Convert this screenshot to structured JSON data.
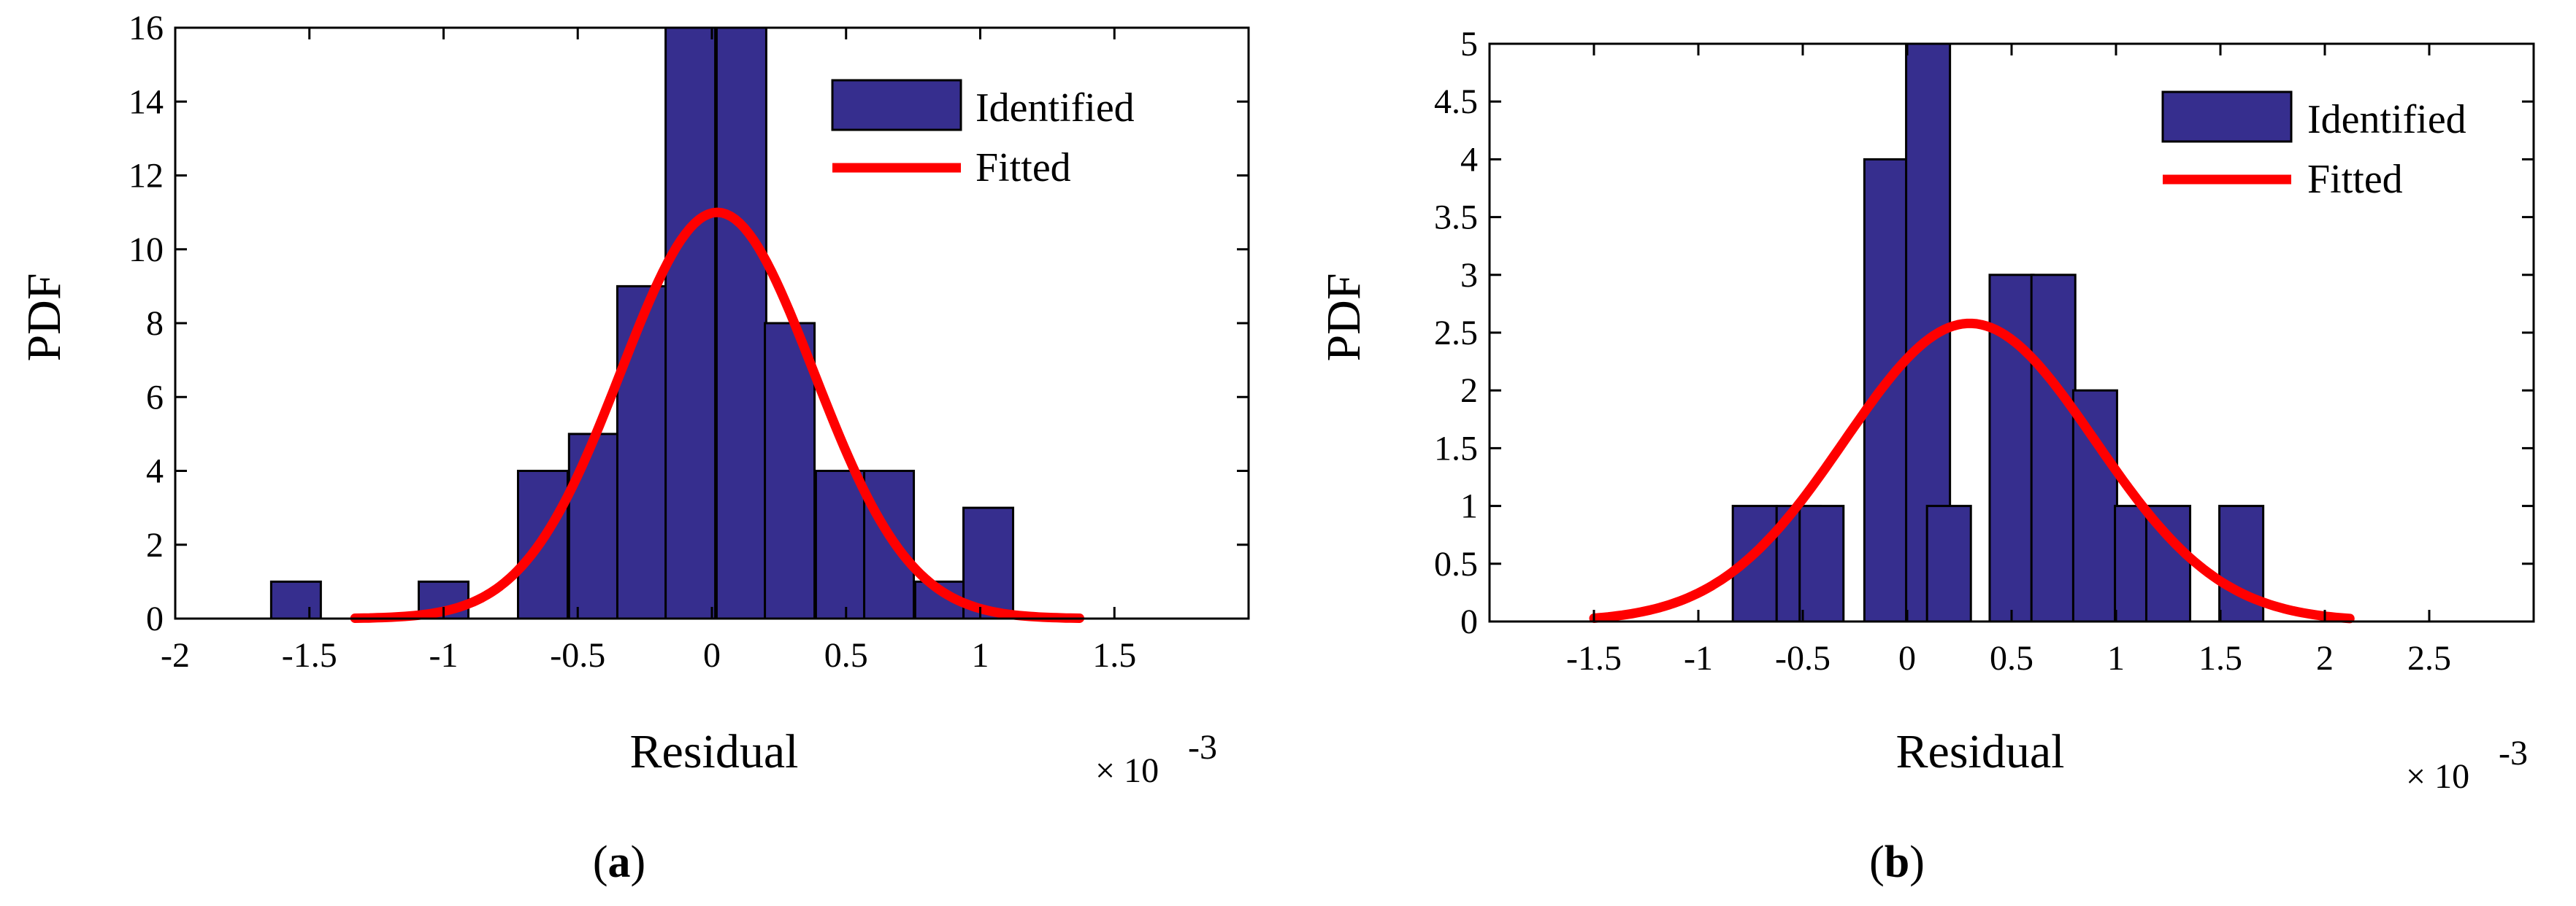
{
  "colors": {
    "bar": "#362E8E",
    "fit": "#FF0000",
    "edge": "#000000"
  },
  "chart_data": [
    {
      "type": "bar",
      "panel": "(a)",
      "caption": {
        "open": "(",
        "letter": "a",
        "close": ")"
      },
      "xlabel": "Residual",
      "ylabel": "PDF",
      "exponent": {
        "base": "× 10",
        "power": "-3"
      },
      "xlim": [
        -2.0,
        2.0
      ],
      "ylim": [
        0,
        16
      ],
      "xticks": [
        -2,
        -1.5,
        -1,
        -0.5,
        0,
        0.5,
        1,
        1.5
      ],
      "xtick_labels": [
        "-2",
        "-1.5",
        "-1",
        "-0.5",
        "0",
        "0.5",
        "1",
        "1.5"
      ],
      "yticks": [
        0,
        2,
        4,
        6,
        8,
        10,
        12,
        14,
        16
      ],
      "ytick_labels": [
        "0",
        "2",
        "4",
        "6",
        "8",
        "10",
        "12",
        "14",
        "16"
      ],
      "bar_width": 0.185,
      "bars": [
        {
          "x": -1.55,
          "value": 1
        },
        {
          "x": -1.0,
          "value": 1
        },
        {
          "x": -0.63,
          "value": 4
        },
        {
          "x": -0.44,
          "value": 5
        },
        {
          "x": -0.26,
          "value": 9
        },
        {
          "x": -0.08,
          "value": 16
        },
        {
          "x": 0.11,
          "value": 16
        },
        {
          "x": 0.29,
          "value": 8
        },
        {
          "x": 0.48,
          "value": 4
        },
        {
          "x": 0.66,
          "value": 4
        },
        {
          "x": 0.85,
          "value": 1
        },
        {
          "x": 1.03,
          "value": 3
        }
      ],
      "fit": {
        "mean": 0.02,
        "sigma": 0.36,
        "peak": 11,
        "range": [
          -1.33,
          1.37
        ]
      },
      "legend": {
        "position": "top-right",
        "bar_label": "Identified",
        "line_label": "Fitted"
      }
    },
    {
      "type": "bar",
      "panel": "(b)",
      "caption": {
        "open": "(",
        "letter": "b",
        "close": ")"
      },
      "xlabel": "Residual",
      "ylabel": "PDF",
      "exponent": {
        "base": "× 10",
        "power": "-3"
      },
      "xlim": [
        -2.0,
        3.0
      ],
      "ylim": [
        0,
        5
      ],
      "xticks": [
        -1.5,
        -1,
        -0.5,
        0,
        0.5,
        1,
        1.5,
        2,
        2.5
      ],
      "xtick_labels": [
        "-1.5",
        "-1",
        "-0.5",
        "0",
        "0.5",
        "1",
        "1.5",
        "2",
        "2.5"
      ],
      "yticks": [
        0,
        0.5,
        1,
        1.5,
        2,
        2.5,
        3,
        3.5,
        4,
        4.5,
        5
      ],
      "ytick_labels": [
        "0",
        "0.5",
        "1",
        "1.5",
        "2",
        "2.5",
        "3",
        "3.5",
        "4",
        "4.5",
        "5"
      ],
      "bar_width": 0.21,
      "bars": [
        {
          "x": -0.73,
          "value": 1
        },
        {
          "x": -0.52,
          "value": 1
        },
        {
          "x": -0.41,
          "value": 1
        },
        {
          "x": -0.1,
          "value": 4
        },
        {
          "x": 0.1,
          "value": 5
        },
        {
          "x": 0.2,
          "value": 1
        },
        {
          "x": 0.5,
          "value": 3
        },
        {
          "x": 0.7,
          "value": 3
        },
        {
          "x": 0.9,
          "value": 2
        },
        {
          "x": 1.1,
          "value": 1
        },
        {
          "x": 1.25,
          "value": 1
        },
        {
          "x": 1.6,
          "value": 1
        }
      ],
      "fit": {
        "mean": 0.3,
        "sigma": 0.6,
        "peak": 2.58,
        "range": [
          -1.5,
          2.12
        ]
      },
      "legend": {
        "position": "top-right",
        "bar_label": "Identified",
        "line_label": "Fitted"
      }
    }
  ]
}
